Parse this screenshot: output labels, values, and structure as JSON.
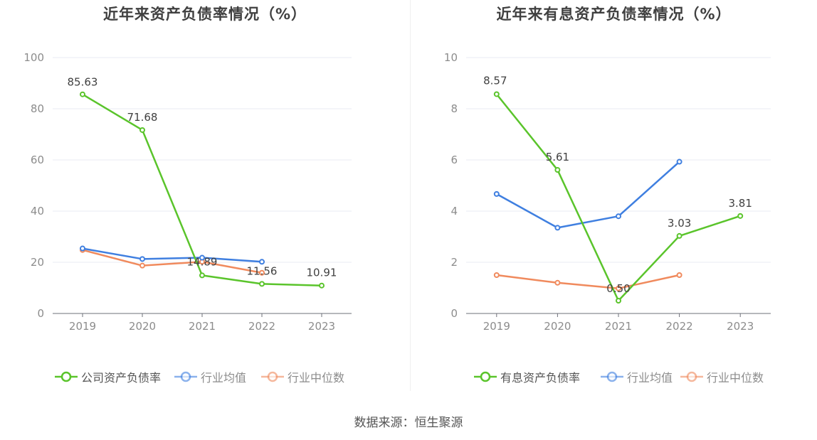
{
  "source_text": "数据来源：恒生聚源",
  "chart_data": [
    {
      "type": "line",
      "title": "近年来资产负债率情况（%）",
      "categories": [
        "2019",
        "2020",
        "2021",
        "2022",
        "2023"
      ],
      "ylim": [
        0,
        100
      ],
      "yticks": [
        0,
        20,
        40,
        60,
        80,
        100
      ],
      "grid": true,
      "legend_position": "bottom",
      "series": [
        {
          "name": "公司资产负债率",
          "color": "#5ac42b",
          "values": [
            85.63,
            71.68,
            14.89,
            11.56,
            10.91
          ],
          "labels": [
            "85.63",
            "71.68",
            "14.89",
            "11.56",
            "10.91"
          ]
        },
        {
          "name": "行业均值",
          "color": "#3f7fe0",
          "values": [
            25.4,
            21.3,
            21.8,
            20.2,
            null
          ]
        },
        {
          "name": "行业中位数",
          "color": "#f08a5d",
          "values": [
            24.8,
            18.7,
            20.2,
            15.9,
            null
          ]
        }
      ]
    },
    {
      "type": "line",
      "title": "近年来有息资产负债率情况（%）",
      "categories": [
        "2019",
        "2020",
        "2021",
        "2022",
        "2023"
      ],
      "ylim": [
        0,
        10
      ],
      "yticks": [
        0,
        2,
        4,
        6,
        8,
        10
      ],
      "grid": true,
      "legend_position": "bottom",
      "series": [
        {
          "name": "有息资产负债率",
          "color": "#5ac42b",
          "values": [
            8.57,
            5.61,
            0.5,
            3.03,
            3.81
          ],
          "labels": [
            "8.57",
            "5.61",
            "0.50",
            "3.03",
            "3.81"
          ]
        },
        {
          "name": "行业均值",
          "color": "#3f7fe0",
          "values": [
            4.67,
            3.35,
            3.8,
            5.93,
            null
          ]
        },
        {
          "name": "行业中位数",
          "color": "#f08a5d",
          "values": [
            1.5,
            1.2,
            0.98,
            1.5,
            null
          ]
        }
      ]
    }
  ]
}
